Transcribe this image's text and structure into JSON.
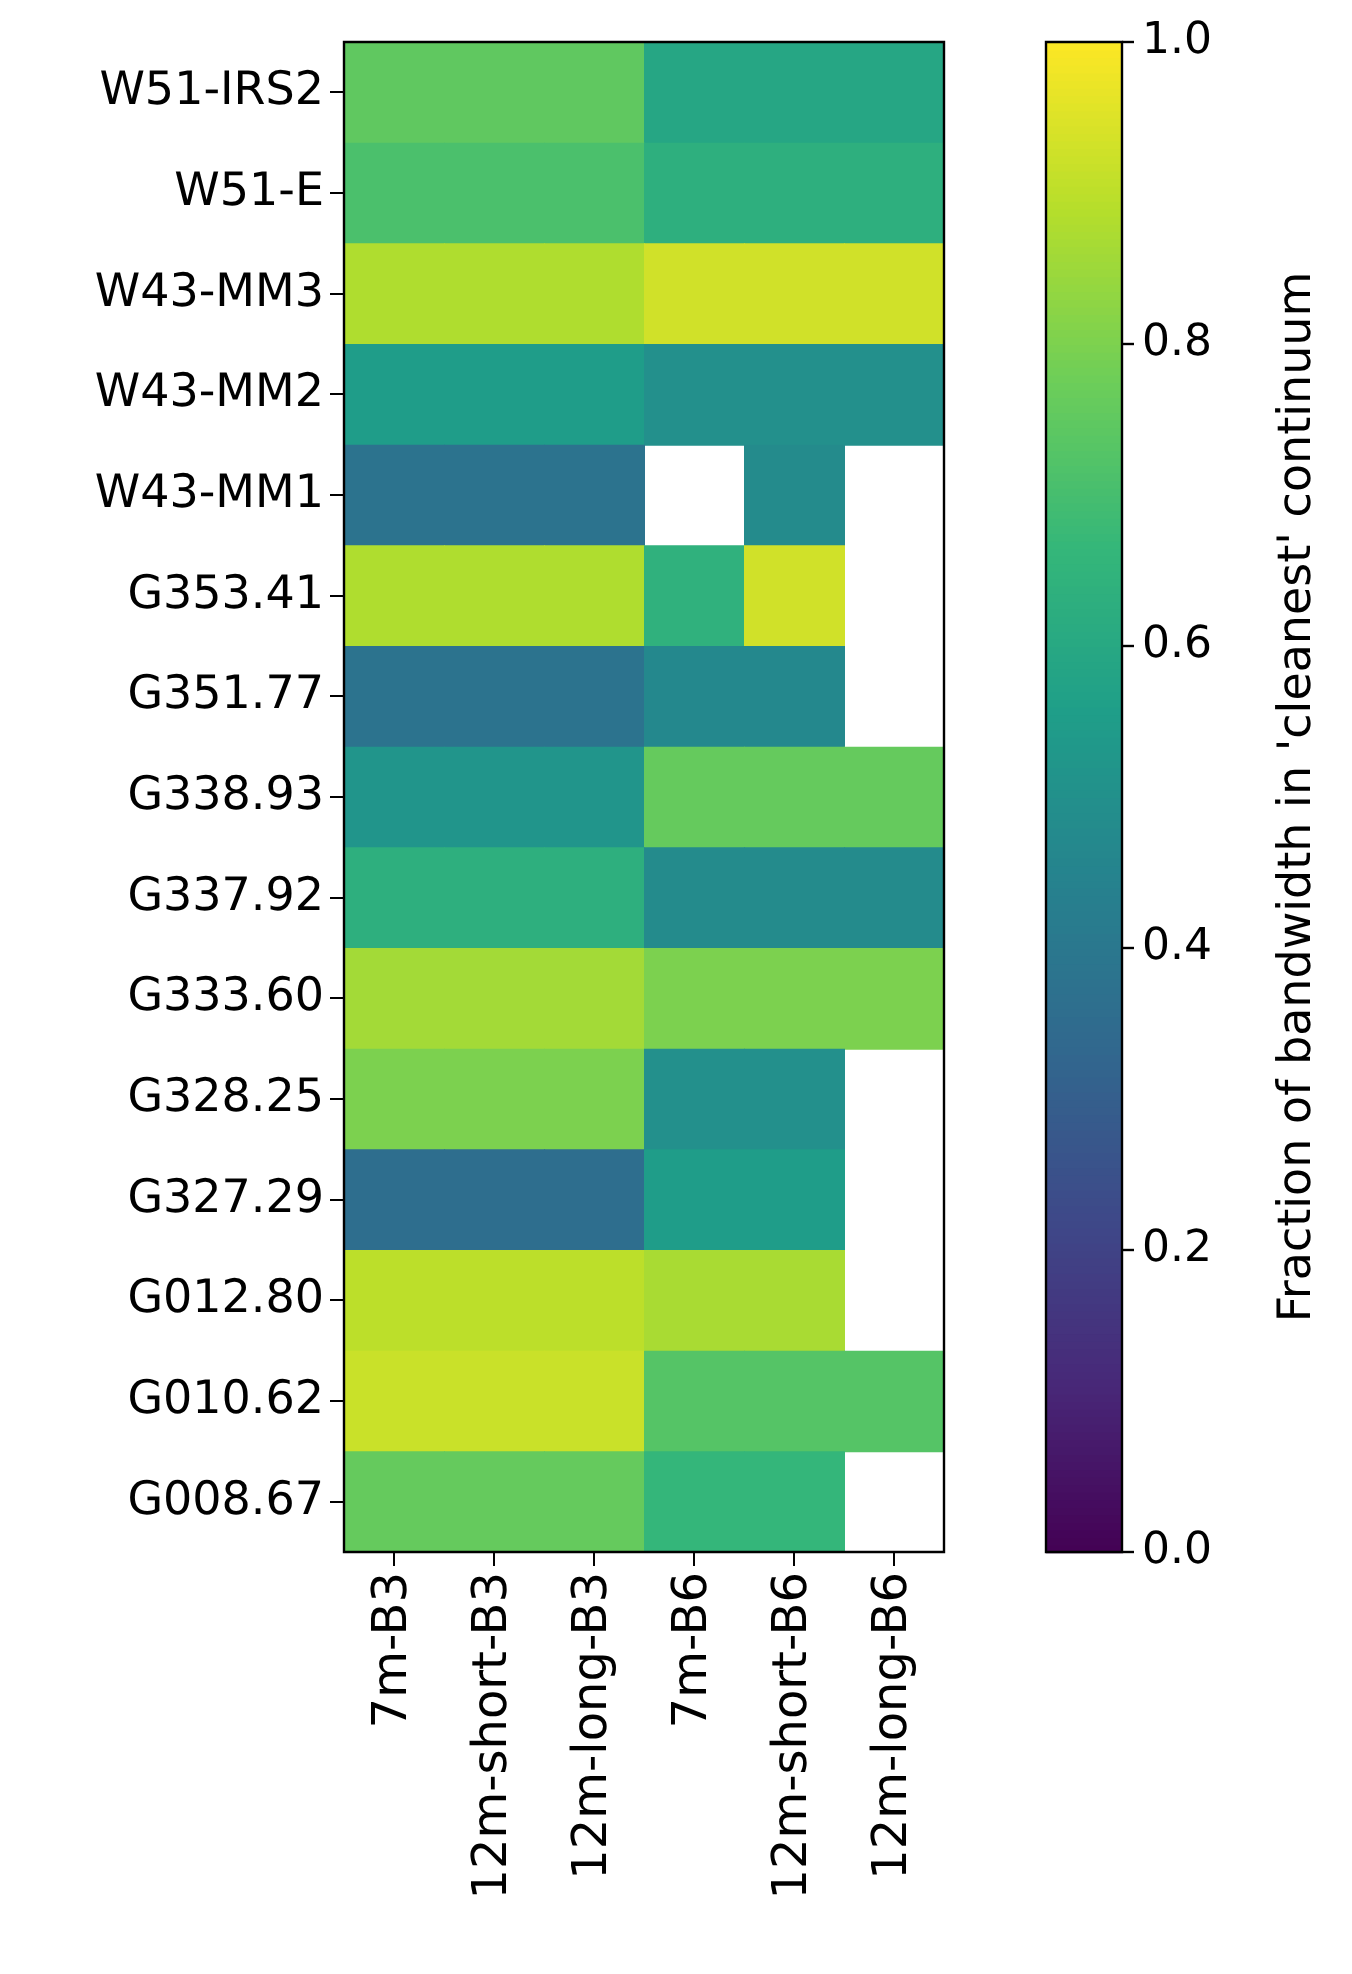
{
  "chart_data": {
    "type": "heatmap",
    "categories": [
      "7m-B3",
      "12m-short-B3",
      "12m-long-B3",
      "7m-B6",
      "12m-short-B6",
      "12m-long-B6"
    ],
    "y_categories": [
      "W51-IRS2",
      "W51-E",
      "W43-MM3",
      "W43-MM2",
      "W43-MM1",
      "G353.41",
      "G351.77",
      "G338.93",
      "G337.92",
      "G333.60",
      "G328.25",
      "G327.29",
      "G012.80",
      "G010.62",
      "G008.67"
    ],
    "cells": [
      [
        0.75,
        0.75,
        0.75,
        0.59,
        0.59,
        0.59
      ],
      [
        0.71,
        0.71,
        0.71,
        0.63,
        0.63,
        0.63
      ],
      [
        0.88,
        0.88,
        0.88,
        0.93,
        0.93,
        0.93
      ],
      [
        0.55,
        0.55,
        0.55,
        0.5,
        0.5,
        0.5
      ],
      [
        0.38,
        0.38,
        0.38,
        null,
        0.48,
        null
      ],
      [
        0.88,
        0.88,
        0.88,
        0.64,
        0.93,
        null
      ],
      [
        0.38,
        0.38,
        0.38,
        0.47,
        0.47,
        null
      ],
      [
        0.52,
        0.52,
        0.52,
        0.76,
        0.76,
        0.76
      ],
      [
        0.63,
        0.63,
        0.63,
        0.48,
        0.48,
        0.48
      ],
      [
        0.86,
        0.86,
        0.86,
        0.8,
        0.8,
        0.8
      ],
      [
        0.8,
        0.8,
        0.8,
        0.5,
        0.5,
        null
      ],
      [
        0.36,
        0.36,
        0.36,
        0.55,
        0.55,
        null
      ],
      [
        0.9,
        0.9,
        0.9,
        0.87,
        0.87,
        null
      ],
      [
        0.92,
        0.92,
        0.92,
        0.73,
        0.73,
        0.73
      ],
      [
        0.76,
        0.76,
        0.76,
        0.66,
        0.66,
        null
      ]
    ],
    "clim": [
      0,
      1
    ],
    "cticks": [
      {
        "value": 0,
        "label": "0.0"
      },
      0.2,
      0.4,
      0.6,
      0.8,
      {
        "value": 1,
        "label": "1.0"
      }
    ],
    "clabel": "Fraction of bandwidth in 'cleanest' continuum"
  }
}
